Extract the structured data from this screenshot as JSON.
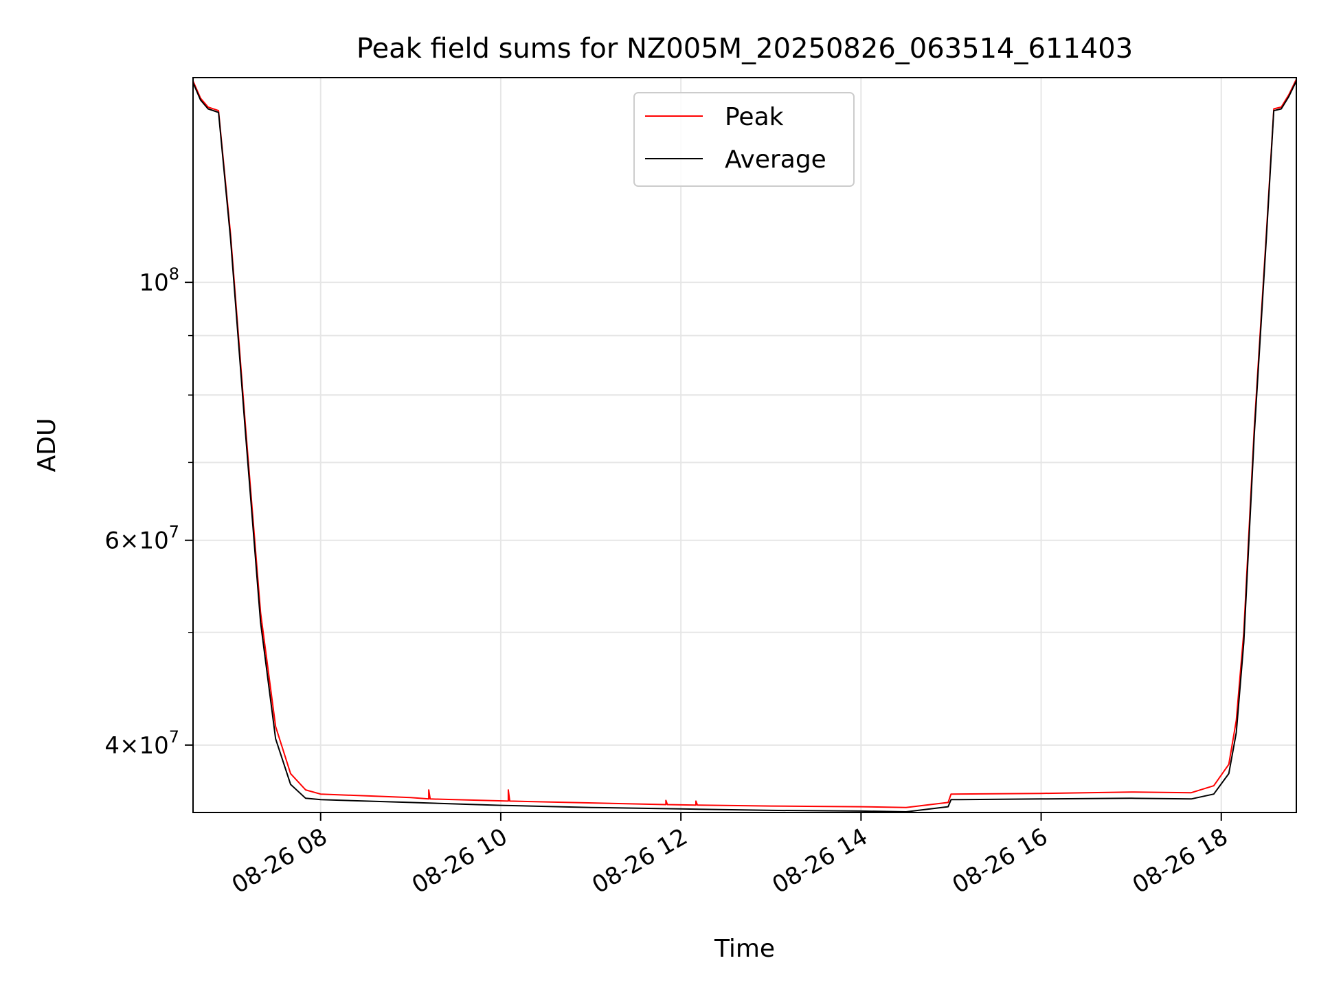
{
  "chart_data": {
    "type": "line",
    "title": "Peak field sums for NZ005M_20250826_063514_611403",
    "xlabel": "Time",
    "ylabel": "ADU",
    "yscale": "log",
    "xlim": [
      "2025-08-26 06:35",
      "2025-08-26 18:50"
    ],
    "ylim": [
      35000000,
      150000000
    ],
    "x_tick_labels": [
      "08-26 08",
      "08-26 10",
      "08-26 12",
      "08-26 14",
      "08-26 16",
      "08-26 18"
    ],
    "x_ticks": [
      "2025-08-26 08:00",
      "2025-08-26 10:00",
      "2025-08-26 12:00",
      "2025-08-26 14:00",
      "2025-08-26 16:00",
      "2025-08-26 18:00"
    ],
    "y_major_ticks": [
      {
        "value": 100000000,
        "mantissa": "",
        "exponent": "8"
      },
      {
        "value": 60000000,
        "mantissa": "6",
        "exponent": "7"
      },
      {
        "value": 40000000,
        "mantissa": "4",
        "exponent": "7"
      }
    ],
    "y_minor_ticks": [
      50000000,
      70000000,
      80000000,
      90000000
    ],
    "grid": true,
    "legend": {
      "position": "upper center"
    },
    "series": [
      {
        "name": "Peak",
        "color": "#ff0000",
        "points": [
          [
            "2025-08-26 06:35",
            149000000
          ],
          [
            "2025-08-26 06:40",
            144000000
          ],
          [
            "2025-08-26 06:45",
            141500000
          ],
          [
            "2025-08-26 06:52",
            140500000
          ],
          [
            "2025-08-26 07:00",
            110000000
          ],
          [
            "2025-08-26 07:10",
            75000000
          ],
          [
            "2025-08-26 07:20",
            52000000
          ],
          [
            "2025-08-26 07:30",
            41500000
          ],
          [
            "2025-08-26 07:40",
            37800000
          ],
          [
            "2025-08-26 07:50",
            36600000
          ],
          [
            "2025-08-26 08:00",
            36300000
          ],
          [
            "2025-08-26 09:00",
            36050000
          ],
          [
            "2025-08-26 09:12",
            35950000
          ],
          [
            "2025-08-26 09:12",
            36600000
          ],
          [
            "2025-08-26 09:13",
            35950000
          ],
          [
            "2025-08-26 10:05",
            35800000
          ],
          [
            "2025-08-26 10:05",
            36600000
          ],
          [
            "2025-08-26 10:06",
            35800000
          ],
          [
            "2025-08-26 11:50",
            35550000
          ],
          [
            "2025-08-26 11:50",
            35850000
          ],
          [
            "2025-08-26 11:51",
            35550000
          ],
          [
            "2025-08-26 12:10",
            35520000
          ],
          [
            "2025-08-26 12:10",
            35800000
          ],
          [
            "2025-08-26 12:11",
            35520000
          ],
          [
            "2025-08-26 13:00",
            35450000
          ],
          [
            "2025-08-26 14:00",
            35400000
          ],
          [
            "2025-08-26 14:30",
            35350000
          ],
          [
            "2025-08-26 14:58",
            35700000
          ],
          [
            "2025-08-26 15:00",
            36300000
          ],
          [
            "2025-08-26 16:00",
            36350000
          ],
          [
            "2025-08-26 17:00",
            36450000
          ],
          [
            "2025-08-26 17:40",
            36400000
          ],
          [
            "2025-08-26 17:55",
            36900000
          ],
          [
            "2025-08-26 18:05",
            38500000
          ],
          [
            "2025-08-26 18:10",
            42000000
          ],
          [
            "2025-08-26 18:15",
            50000000
          ],
          [
            "2025-08-26 18:22",
            75000000
          ],
          [
            "2025-08-26 18:30",
            110000000
          ],
          [
            "2025-08-26 18:35",
            141000000
          ],
          [
            "2025-08-26 18:40",
            141500000
          ],
          [
            "2025-08-26 18:45",
            145000000
          ],
          [
            "2025-08-26 18:50",
            149500000
          ]
        ]
      },
      {
        "name": "Average",
        "color": "#000000",
        "points": [
          [
            "2025-08-26 06:35",
            148500000
          ],
          [
            "2025-08-26 06:40",
            143500000
          ],
          [
            "2025-08-26 06:45",
            141000000
          ],
          [
            "2025-08-26 06:52",
            140000000
          ],
          [
            "2025-08-26 07:00",
            109000000
          ],
          [
            "2025-08-26 07:10",
            74000000
          ],
          [
            "2025-08-26 07:20",
            51000000
          ],
          [
            "2025-08-26 07:30",
            40500000
          ],
          [
            "2025-08-26 07:40",
            37000000
          ],
          [
            "2025-08-26 07:50",
            36000000
          ],
          [
            "2025-08-26 08:00",
            35900000
          ],
          [
            "2025-08-26 09:00",
            35700000
          ],
          [
            "2025-08-26 10:00",
            35500000
          ],
          [
            "2025-08-26 11:00",
            35350000
          ],
          [
            "2025-08-26 12:00",
            35250000
          ],
          [
            "2025-08-26 13:00",
            35150000
          ],
          [
            "2025-08-26 14:00",
            35100000
          ],
          [
            "2025-08-26 14:30",
            35050000
          ],
          [
            "2025-08-26 14:58",
            35400000
          ],
          [
            "2025-08-26 15:00",
            35900000
          ],
          [
            "2025-08-26 16:00",
            35950000
          ],
          [
            "2025-08-26 17:00",
            36000000
          ],
          [
            "2025-08-26 17:40",
            35950000
          ],
          [
            "2025-08-26 17:55",
            36300000
          ],
          [
            "2025-08-26 18:05",
            37800000
          ],
          [
            "2025-08-26 18:10",
            41000000
          ],
          [
            "2025-08-26 18:15",
            49000000
          ],
          [
            "2025-08-26 18:22",
            74000000
          ],
          [
            "2025-08-26 18:30",
            109000000
          ],
          [
            "2025-08-26 18:35",
            140500000
          ],
          [
            "2025-08-26 18:40",
            141000000
          ],
          [
            "2025-08-26 18:45",
            144500000
          ],
          [
            "2025-08-26 18:50",
            149000000
          ]
        ]
      }
    ]
  }
}
